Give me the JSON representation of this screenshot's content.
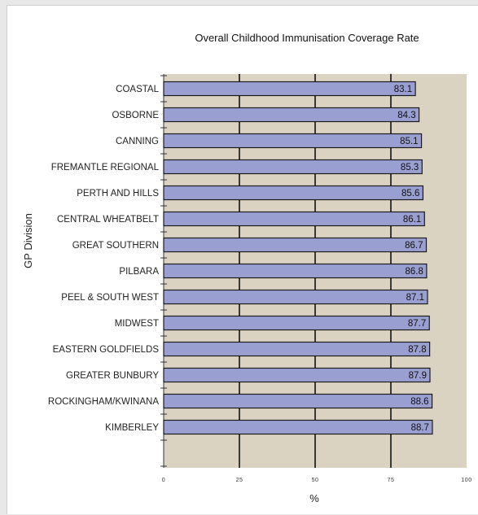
{
  "chart_data": {
    "type": "bar",
    "orientation": "horizontal",
    "title": "Overall Childhood Immunisation Coverage Rate",
    "xlabel": "%",
    "ylabel": "GP Division",
    "xlim": [
      0,
      100
    ],
    "xticks": [
      0,
      25,
      50,
      75,
      100
    ],
    "categories": [
      "COASTAL",
      "OSBORNE",
      "CANNING",
      "FREMANTLE REGIONAL",
      "PERTH AND HILLS",
      "CENTRAL WHEATBELT",
      "GREAT SOUTHERN",
      "PILBARA",
      "PEEL & SOUTH WEST",
      "MIDWEST",
      "EASTERN GOLDFIELDS",
      "GREATER BUNBURY",
      "ROCKINGHAM/KWINANA",
      "KIMBERLEY"
    ],
    "values": [
      83.1,
      84.3,
      85.1,
      85.3,
      85.6,
      86.1,
      86.7,
      86.8,
      87.1,
      87.7,
      87.8,
      87.9,
      88.6,
      88.7
    ],
    "data_labels": [
      "83.1",
      "84.3",
      "85.1",
      "85.3",
      "85.6",
      "86.1",
      "86.7",
      "86.8",
      "87.1",
      "87.7",
      "87.8",
      "87.9",
      "88.6",
      "88.7"
    ],
    "grid": "vertical",
    "colors": {
      "bar_fill": "#9a9fd2",
      "bar_stroke": "#1a1a1a",
      "plot_background": "#dbd3c1",
      "gridline": "#111111"
    }
  }
}
